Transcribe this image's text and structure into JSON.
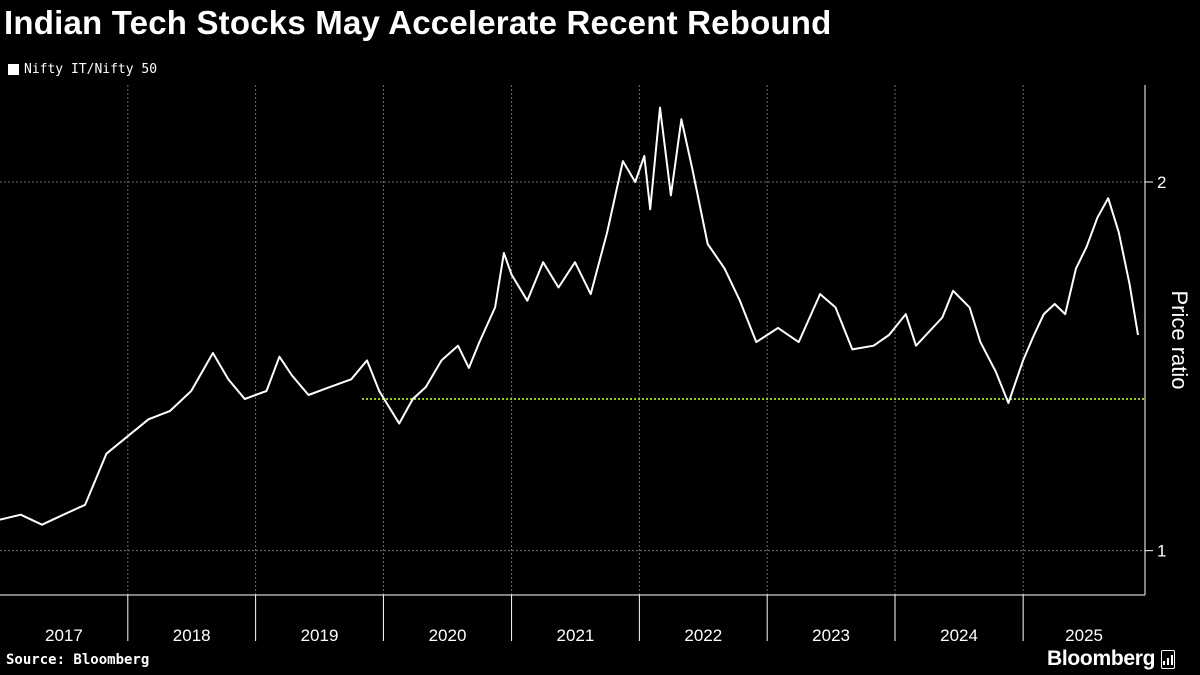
{
  "header": {
    "title": "Indian Tech Stocks May Accelerate Recent Rebound"
  },
  "legend": {
    "label": "Nifty IT/Nifty 50"
  },
  "footer": {
    "source": "Source: Bloomberg",
    "brand": "Bloomberg"
  },
  "colors": {
    "background": "#000000",
    "series": "#ffffff",
    "support_line": "#9acd32",
    "grid": "#6f6f6f"
  },
  "chart_data": {
    "type": "line",
    "title": "Indian Tech Stocks May Accelerate Recent Rebound",
    "ylabel": "Price ratio",
    "xlabel": "",
    "y_scale": "log",
    "ylim": [
      0.92,
      2.4
    ],
    "y_ticks": [
      "1",
      "2"
    ],
    "x_ticks": [
      "2017",
      "2018",
      "2019",
      "2020",
      "2021",
      "2022",
      "2023",
      "2024",
      "2025"
    ],
    "xlim": [
      "2017-01-01",
      "2025-12-15"
    ],
    "grid": true,
    "legend_position": "top-left",
    "series": [
      {
        "name": "Nifty IT/Nifty 50",
        "points": [
          [
            "2017-01-01",
            1.06
          ],
          [
            "2017-03-01",
            1.07
          ],
          [
            "2017-05-01",
            1.05
          ],
          [
            "2017-07-01",
            1.07
          ],
          [
            "2017-09-01",
            1.09
          ],
          [
            "2017-11-01",
            1.2
          ],
          [
            "2018-01-01",
            1.24
          ],
          [
            "2018-03-01",
            1.28
          ],
          [
            "2018-05-01",
            1.3
          ],
          [
            "2018-07-01",
            1.35
          ],
          [
            "2018-09-01",
            1.45
          ],
          [
            "2018-10-15",
            1.38
          ],
          [
            "2018-12-01",
            1.33
          ],
          [
            "2019-02-01",
            1.35
          ],
          [
            "2019-03-10",
            1.44
          ],
          [
            "2019-04-15",
            1.39
          ],
          [
            "2019-06-01",
            1.34
          ],
          [
            "2019-08-01",
            1.36
          ],
          [
            "2019-10-01",
            1.38
          ],
          [
            "2019-11-15",
            1.43
          ],
          [
            "2019-12-20",
            1.35
          ],
          [
            "2020-02-15",
            1.27
          ],
          [
            "2020-03-25",
            1.33
          ],
          [
            "2020-05-01",
            1.36
          ],
          [
            "2020-06-15",
            1.43
          ],
          [
            "2020-08-01",
            1.47
          ],
          [
            "2020-09-01",
            1.41
          ],
          [
            "2020-10-01",
            1.48
          ],
          [
            "2020-11-15",
            1.58
          ],
          [
            "2020-12-10",
            1.75
          ],
          [
            "2021-01-01",
            1.68
          ],
          [
            "2021-02-15",
            1.6
          ],
          [
            "2021-04-01",
            1.72
          ],
          [
            "2021-05-15",
            1.64
          ],
          [
            "2021-07-01",
            1.72
          ],
          [
            "2021-08-15",
            1.62
          ],
          [
            "2021-10-01",
            1.82
          ],
          [
            "2021-11-15",
            2.08
          ],
          [
            "2021-12-20",
            2.0
          ],
          [
            "2022-01-15",
            2.1
          ],
          [
            "2022-02-01",
            1.9
          ],
          [
            "2022-03-01",
            2.3
          ],
          [
            "2022-04-01",
            1.95
          ],
          [
            "2022-05-01",
            2.25
          ],
          [
            "2022-06-01",
            2.05
          ],
          [
            "2022-07-15",
            1.78
          ],
          [
            "2022-09-01",
            1.7
          ],
          [
            "2022-10-15",
            1.6
          ],
          [
            "2022-12-01",
            1.48
          ],
          [
            "2023-02-01",
            1.52
          ],
          [
            "2023-04-01",
            1.48
          ],
          [
            "2023-06-01",
            1.62
          ],
          [
            "2023-07-15",
            1.58
          ],
          [
            "2023-09-01",
            1.46
          ],
          [
            "2023-11-01",
            1.47
          ],
          [
            "2023-12-15",
            1.5
          ],
          [
            "2024-02-01",
            1.56
          ],
          [
            "2024-03-01",
            1.47
          ],
          [
            "2024-05-15",
            1.55
          ],
          [
            "2024-06-15",
            1.63
          ],
          [
            "2024-08-01",
            1.58
          ],
          [
            "2024-09-01",
            1.48
          ],
          [
            "2024-10-15",
            1.4
          ],
          [
            "2024-11-20",
            1.32
          ],
          [
            "2025-01-01",
            1.43
          ],
          [
            "2025-02-01",
            1.5
          ],
          [
            "2025-03-01",
            1.56
          ],
          [
            "2025-04-01",
            1.59
          ],
          [
            "2025-05-01",
            1.56
          ],
          [
            "2025-06-01",
            1.7
          ],
          [
            "2025-07-01",
            1.77
          ],
          [
            "2025-08-01",
            1.87
          ],
          [
            "2025-09-01",
            1.94
          ],
          [
            "2025-10-01",
            1.82
          ],
          [
            "2025-11-01",
            1.65
          ],
          [
            "2025-11-25",
            1.5
          ]
        ]
      }
    ],
    "annotations": [
      {
        "type": "horizontal_line",
        "value": 1.33,
        "from": "2019-11-01",
        "to": "2025-12-15",
        "style": "dotted"
      }
    ]
  }
}
